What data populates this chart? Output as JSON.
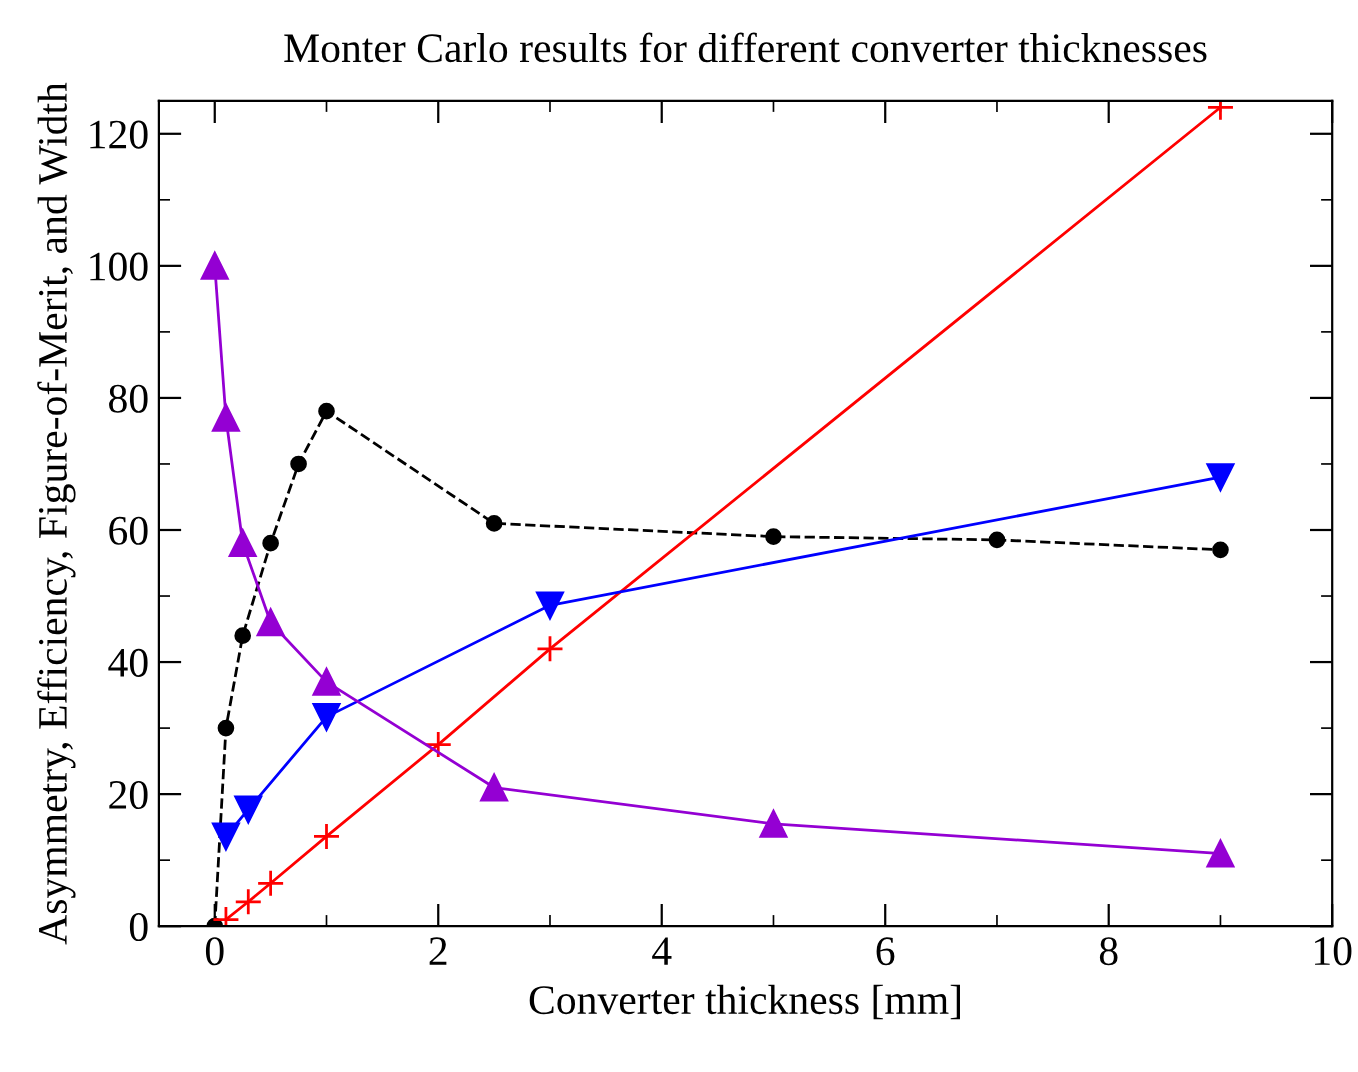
{
  "chart_data": {
    "type": "line",
    "title": "Monter Carlo results for different converter thicknesses",
    "xlabel": "Converter thickness [mm]",
    "ylabel": "Asymmetry, Efficiency, Figure-of-Merit, and Width",
    "xlim": [
      -0.5,
      10
    ],
    "ylim": [
      0,
      125
    ],
    "xticks": [
      0,
      2,
      4,
      6,
      8,
      10
    ],
    "yticks": [
      0,
      20,
      40,
      60,
      80,
      100,
      120
    ],
    "grid": false,
    "legend": false,
    "series": [
      {
        "color": "#000000",
        "marker": "circle",
        "line_style": "dashed",
        "x": [
          0,
          0.1,
          0.25,
          0.5,
          0.75,
          1,
          2.5,
          5,
          7,
          9
        ],
        "values": [
          0,
          30,
          44,
          58,
          70,
          78,
          61,
          59,
          58.5,
          57
        ]
      },
      {
        "color": "#ff0000",
        "marker": "cross",
        "line_style": "solid",
        "x": [
          0.1,
          0.3,
          0.5,
          1,
          2,
          3,
          9
        ],
        "values": [
          1,
          3.7,
          6.5,
          13.6,
          27.5,
          42,
          124
        ]
      },
      {
        "color": "#0000ff",
        "marker": "triangle_down",
        "line_style": "solid",
        "x": [
          0.1,
          0.3,
          1,
          3,
          9
        ],
        "values": [
          13.6,
          17.7,
          31.7,
          48.6,
          68
        ]
      },
      {
        "color": "#9400d3",
        "marker": "triangle",
        "line_style": "solid",
        "x": [
          0,
          0.1,
          0.25,
          0.5,
          1,
          2.5,
          5,
          9
        ],
        "values": [
          100,
          77,
          58,
          46,
          37,
          21,
          15.5,
          11
        ]
      }
    ]
  }
}
